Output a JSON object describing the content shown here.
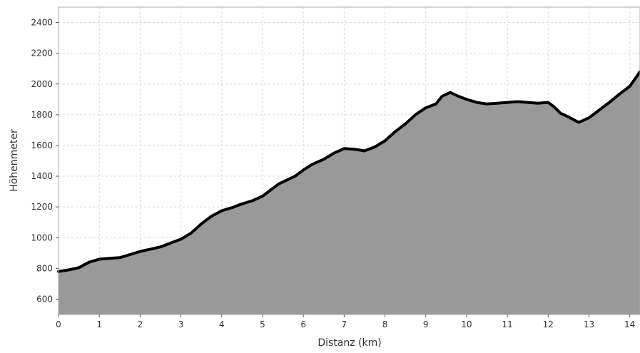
{
  "chart_data": {
    "type": "area",
    "xlabel": "Distanz (km)",
    "ylabel": "Höhenmeter",
    "xlim": [
      0,
      14.25
    ],
    "ylim": [
      500,
      2500
    ],
    "x_ticks": [
      0,
      1,
      2,
      3,
      4,
      5,
      6,
      7,
      8,
      9,
      10,
      11,
      12,
      13,
      14
    ],
    "y_ticks": [
      600,
      800,
      1000,
      1200,
      1400,
      1600,
      1800,
      2000,
      2200,
      2400
    ],
    "grid": true,
    "colors": {
      "fill": "#999999",
      "line": "#000000",
      "grid": "#d9d9d9",
      "frame": "#aaaaaa"
    },
    "x": [
      0,
      0.25,
      0.5,
      0.75,
      1.0,
      1.25,
      1.5,
      1.75,
      2.0,
      2.25,
      2.5,
      2.75,
      3.0,
      3.25,
      3.5,
      3.75,
      4.0,
      4.25,
      4.5,
      4.75,
      5.0,
      5.2,
      5.4,
      5.6,
      5.8,
      6.0,
      6.2,
      6.5,
      6.75,
      7.0,
      7.25,
      7.5,
      7.75,
      8.0,
      8.25,
      8.5,
      8.75,
      9.0,
      9.25,
      9.4,
      9.6,
      9.8,
      10.0,
      10.25,
      10.5,
      10.75,
      11.0,
      11.25,
      11.5,
      11.75,
      12.0,
      12.15,
      12.3,
      12.5,
      12.75,
      13.0,
      13.25,
      13.5,
      13.75,
      14.0,
      14.25
    ],
    "y": [
      780,
      790,
      805,
      840,
      860,
      865,
      870,
      890,
      910,
      925,
      940,
      965,
      990,
      1030,
      1090,
      1140,
      1175,
      1195,
      1220,
      1240,
      1270,
      1310,
      1350,
      1375,
      1400,
      1440,
      1475,
      1510,
      1550,
      1580,
      1575,
      1565,
      1590,
      1630,
      1690,
      1740,
      1800,
      1845,
      1870,
      1920,
      1945,
      1920,
      1900,
      1880,
      1870,
      1875,
      1880,
      1885,
      1880,
      1875,
      1880,
      1850,
      1810,
      1785,
      1750,
      1780,
      1830,
      1880,
      1935,
      1985,
      2080
    ]
  }
}
